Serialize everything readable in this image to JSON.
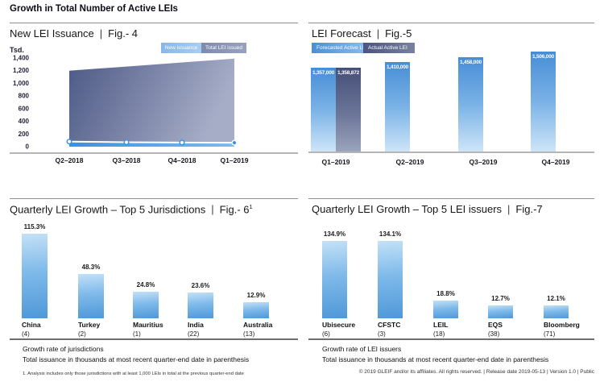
{
  "header": {
    "title": "Growth in Total Number of Active LEIs"
  },
  "ui": {
    "pipe": "|"
  },
  "colors": {
    "forecast_blue": "#4a90d8",
    "actual_dark_blue": "#454f78",
    "growth_bar_blue": "#4f98d8",
    "new_issuance_band_blue": "#3b90e1",
    "total_area_dark": "#4d5986"
  },
  "chart_data": [
    {
      "id": "fig4",
      "type": "area",
      "title": "New LEI Issuance",
      "fig": "Fig.- 4",
      "ylabel": "Tsd.",
      "unit": "thousands",
      "x": [
        "Q2–2018",
        "Q3–2018",
        "Q4–2018",
        "Q1–2019"
      ],
      "series": [
        {
          "name": "New issuance",
          "values": [
            80,
            70,
            65,
            62
          ]
        },
        {
          "name": "Total LEI issued",
          "values": [
            1200,
            1265,
            1330,
            1390
          ]
        }
      ],
      "ylim": [
        0,
        1400
      ],
      "ytick_values": [
        0,
        200,
        400,
        600,
        800,
        1000,
        1200,
        1400
      ],
      "ytick_labels": [
        "0",
        "200",
        "400",
        "600",
        "800",
        "1,000",
        "1,200",
        "1,400"
      ],
      "legend_position": "top-right",
      "grid": false
    },
    {
      "id": "fig5",
      "type": "bar",
      "title": "LEI Forecast",
      "fig": "Fig.-5",
      "categories": [
        "Q1–2019",
        "Q2–2019",
        "Q3–2019",
        "Q4–2019"
      ],
      "series": [
        {
          "name": "Forecasted Active LEI",
          "values": [
            1357000,
            1410000,
            1458000,
            1506000
          ],
          "labels": [
            "1,357,000",
            "1,410,000",
            "1,458,000",
            "1,506,000"
          ]
        },
        {
          "name": "Actual Active LEI",
          "values": [
            1358872,
            null,
            null,
            null
          ],
          "labels": [
            "1,358,872",
            null,
            null,
            null
          ]
        }
      ],
      "legend_position": "top-left",
      "grid": false
    },
    {
      "id": "fig6",
      "type": "bar",
      "title": "Quarterly LEI Growth – Top 5 Jurisdictions",
      "fig": "Fig.- 6",
      "fig_sup": "1",
      "categories": [
        "China",
        "Turkey",
        "Mauritius",
        "India",
        "Australia"
      ],
      "counts": [
        "(4)",
        "(2)",
        "(1)",
        "(22)",
        "(13)"
      ],
      "values": [
        115.3,
        48.3,
        24.8,
        23.6,
        12.9
      ],
      "labels": [
        "115.3%",
        "48.3%",
        "24.8%",
        "23.6%",
        "12.9%"
      ],
      "note1": "Growth rate of jurisdictions",
      "note2": "Total issuance in thousands at most recent quarter-end date in parenthesis",
      "footnote": "1. Analysis includes only those jurisdictions with at least 1,000 LEIs in total at the previous quarter-end date"
    },
    {
      "id": "fig7",
      "type": "bar",
      "title": "Quarterly LEI Growth – Top 5 LEI issuers",
      "fig": "Fig.-7",
      "categories": [
        "Ubisecure",
        "CFSTC",
        "LEIL",
        "EQS",
        "Bloomberg"
      ],
      "counts": [
        "(6)",
        "(3)",
        "(18)",
        "(38)",
        "(71)"
      ],
      "values": [
        134.9,
        134.1,
        18.8,
        12.7,
        12.1
      ],
      "labels": [
        "134.9%",
        "134.1%",
        "18.8%",
        "12.7%",
        "12.1%"
      ],
      "note1": "Growth rate of LEI issuers",
      "note2": "Total issuance in thousands at most recent quarter-end date in parenthesis"
    }
  ],
  "footer": {
    "text": "© 2019 GLEIF and/or its affiliates. All rights reserved.  |  Release date 2019-05-13  |  Version 1.0  |  Public"
  }
}
